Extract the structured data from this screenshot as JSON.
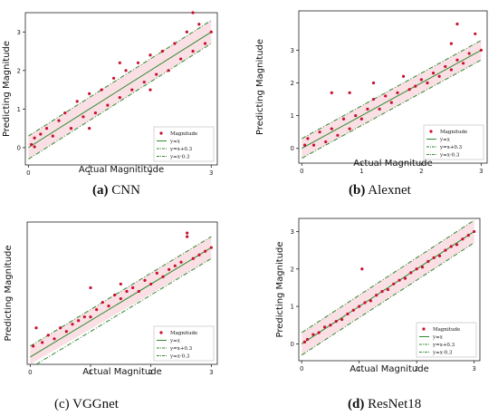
{
  "captions": [
    {
      "label": "(a)",
      "name": "CNN"
    },
    {
      "label": "(b)",
      "name": "Alexnet"
    },
    {
      "label": "(c)",
      "name": "VGGnet"
    },
    {
      "label": "(d)",
      "name": "ResNet18"
    }
  ],
  "colors": {
    "point": "#c8102e",
    "line": "#2f8a2f",
    "band": "#f6c7cf"
  },
  "chart_data": [
    {
      "type": "scatter",
      "title": "",
      "xlabel": "Actual Magnititude",
      "ylabel": "Predicting Magnitude",
      "xlim": [
        -0.05,
        3.1
      ],
      "ylim": [
        -0.45,
        3.5
      ],
      "xticks": [
        "0",
        "1",
        "2",
        "3"
      ],
      "yticks": [
        "0",
        "1",
        "2",
        "3"
      ],
      "grid": false,
      "legend_position": "bottom-right",
      "legend": [
        "Magnitude",
        "y=x",
        "y=x+0.3",
        "y=x-0.3"
      ],
      "series": [
        {
          "name": "Magnitude",
          "kind": "points",
          "points": [
            [
              0.05,
              0.08
            ],
            [
              0.1,
              0.02
            ],
            [
              0.1,
              0.25
            ],
            [
              0.2,
              0.35
            ],
            [
              0.3,
              0.5
            ],
            [
              0.4,
              0.3
            ],
            [
              0.5,
              0.7
            ],
            [
              0.6,
              0.9
            ],
            [
              0.7,
              0.5
            ],
            [
              0.8,
              1.2
            ],
            [
              0.9,
              0.8
            ],
            [
              1.0,
              1.4
            ],
            [
              1.1,
              0.9
            ],
            [
              1.2,
              1.5
            ],
            [
              1.3,
              1.1
            ],
            [
              1.4,
              1.8
            ],
            [
              1.5,
              1.3
            ],
            [
              1.6,
              2.0
            ],
            [
              1.7,
              1.5
            ],
            [
              1.8,
              2.2
            ],
            [
              1.9,
              1.7
            ],
            [
              2.0,
              2.4
            ],
            [
              2.1,
              1.9
            ],
            [
              2.2,
              2.5
            ],
            [
              2.3,
              2.0
            ],
            [
              2.4,
              2.7
            ],
            [
              2.5,
              2.3
            ],
            [
              2.6,
              3.0
            ],
            [
              2.7,
              2.5
            ],
            [
              2.8,
              3.2
            ],
            [
              2.9,
              2.7
            ],
            [
              3.0,
              3.0
            ],
            [
              2.7,
              3.5
            ],
            [
              1.0,
              0.5
            ],
            [
              1.5,
              2.2
            ],
            [
              2.0,
              1.5
            ]
          ]
        },
        {
          "name": "y=x",
          "kind": "line",
          "offset": 0
        },
        {
          "name": "y=x+0.3",
          "kind": "line",
          "offset": 0.3
        },
        {
          "name": "y=x-0.3",
          "kind": "line",
          "offset": -0.3
        }
      ]
    },
    {
      "type": "scatter",
      "title": "",
      "xlabel": "Actual Magnitude",
      "ylabel": "Predicting Magnitude",
      "xlim": [
        -0.05,
        3.1
      ],
      "ylim": [
        -0.45,
        4.2
      ],
      "xticks": [
        "0",
        "1",
        "2",
        "3"
      ],
      "yticks": [
        "0",
        "1",
        "2",
        "3"
      ],
      "grid": false,
      "legend_position": "bottom-right",
      "legend": [
        "Magnitude",
        "y=x",
        "y=x+0.3",
        "y=x-0.3"
      ],
      "series": [
        {
          "name": "Magnitude",
          "kind": "points",
          "points": [
            [
              0.05,
              0.1
            ],
            [
              0.1,
              0.3
            ],
            [
              0.2,
              0.1
            ],
            [
              0.3,
              0.5
            ],
            [
              0.4,
              0.2
            ],
            [
              0.5,
              0.6
            ],
            [
              0.6,
              0.4
            ],
            [
              0.7,
              0.9
            ],
            [
              0.8,
              1.7
            ],
            [
              0.8,
              0.6
            ],
            [
              0.9,
              1.0
            ],
            [
              1.0,
              0.9
            ],
            [
              1.1,
              1.2
            ],
            [
              1.2,
              1.5
            ],
            [
              1.3,
              1.2
            ],
            [
              1.4,
              1.6
            ],
            [
              1.5,
              1.4
            ],
            [
              1.6,
              1.7
            ],
            [
              1.7,
              2.2
            ],
            [
              1.8,
              1.8
            ],
            [
              1.9,
              1.9
            ],
            [
              2.0,
              2.1
            ],
            [
              2.1,
              2.0
            ],
            [
              2.2,
              2.3
            ],
            [
              2.3,
              2.2
            ],
            [
              2.4,
              2.5
            ],
            [
              2.5,
              2.4
            ],
            [
              2.6,
              2.7
            ],
            [
              2.6,
              3.8
            ],
            [
              2.7,
              2.6
            ],
            [
              2.8,
              2.9
            ],
            [
              2.9,
              3.5
            ],
            [
              3.0,
              3.0
            ],
            [
              0.5,
              1.7
            ],
            [
              1.2,
              2.0
            ],
            [
              2.5,
              3.2
            ]
          ]
        },
        {
          "name": "y=x",
          "kind": "line",
          "offset": 0
        },
        {
          "name": "y=x+0.3",
          "kind": "line",
          "offset": 0.3
        },
        {
          "name": "y=x-0.3",
          "kind": "line",
          "offset": -0.3
        }
      ]
    },
    {
      "type": "scatter",
      "title": "",
      "xlabel": "Actual Magnitude",
      "ylabel": "Predicting Magnitude",
      "xlim": [
        -0.05,
        3.1
      ],
      "ylim": [
        -0.2,
        3.7
      ],
      "xticks": [
        "0",
        "1",
        "2",
        "3"
      ],
      "yticks": [],
      "grid": false,
      "legend_position": "bottom-right",
      "legend": [
        "Magnitude",
        "y=x",
        "y=x+0.3",
        "y=x-0.3"
      ],
      "series": [
        {
          "name": "Magnitude",
          "kind": "points",
          "points": [
            [
              0.05,
              0.3
            ],
            [
              0.1,
              0.8
            ],
            [
              0.2,
              0.4
            ],
            [
              0.3,
              0.6
            ],
            [
              0.4,
              0.5
            ],
            [
              0.5,
              0.8
            ],
            [
              0.6,
              0.7
            ],
            [
              0.7,
              0.9
            ],
            [
              0.8,
              1.0
            ],
            [
              0.9,
              1.1
            ],
            [
              1.0,
              1.1
            ],
            [
              1.1,
              1.3
            ],
            [
              1.2,
              1.5
            ],
            [
              1.3,
              1.4
            ],
            [
              1.4,
              1.7
            ],
            [
              1.5,
              1.6
            ],
            [
              1.6,
              1.8
            ],
            [
              1.7,
              1.9
            ],
            [
              1.8,
              1.8
            ],
            [
              1.9,
              2.1
            ],
            [
              2.0,
              2.0
            ],
            [
              2.1,
              2.3
            ],
            [
              2.2,
              2.2
            ],
            [
              2.3,
              2.4
            ],
            [
              2.4,
              2.5
            ],
            [
              2.5,
              2.6
            ],
            [
              2.6,
              3.3
            ],
            [
              2.7,
              2.7
            ],
            [
              2.8,
              2.8
            ],
            [
              2.9,
              2.9
            ],
            [
              3.0,
              3.0
            ],
            [
              1.0,
              1.9
            ],
            [
              1.5,
              2.0
            ],
            [
              2.6,
              3.4
            ]
          ]
        },
        {
          "name": "y=x",
          "kind": "line",
          "offset": 0
        },
        {
          "name": "y=x+0.3",
          "kind": "line",
          "offset": 0.3
        },
        {
          "name": "y=x-0.3",
          "kind": "line",
          "offset": -0.3
        }
      ]
    },
    {
      "type": "scatter",
      "title": "",
      "xlabel": "Actual Magnitude",
      "ylabel": "Predicting Magnitude",
      "xlim": [
        -0.05,
        3.1
      ],
      "ylim": [
        -0.45,
        3.35
      ],
      "xticks": [
        "0",
        "1",
        "2",
        "3"
      ],
      "yticks": [
        "0",
        "1",
        "2",
        "3"
      ],
      "grid": false,
      "legend_position": "bottom-right",
      "legend": [
        "Magnitude",
        "y=x",
        "y=x+0.3",
        "y=x-0.3"
      ],
      "series": [
        {
          "name": "Magnitude",
          "kind": "points",
          "points": [
            [
              0.05,
              0.05
            ],
            [
              0.1,
              0.12
            ],
            [
              0.2,
              0.25
            ],
            [
              0.3,
              0.3
            ],
            [
              0.4,
              0.45
            ],
            [
              0.5,
              0.5
            ],
            [
              0.6,
              0.6
            ],
            [
              0.7,
              0.65
            ],
            [
              0.8,
              0.8
            ],
            [
              0.9,
              0.9
            ],
            [
              1.0,
              1.0
            ],
            [
              1.05,
              2.0
            ],
            [
              1.1,
              1.1
            ],
            [
              1.2,
              1.15
            ],
            [
              1.3,
              1.3
            ],
            [
              1.4,
              1.4
            ],
            [
              1.5,
              1.45
            ],
            [
              1.6,
              1.6
            ],
            [
              1.7,
              1.7
            ],
            [
              1.8,
              1.75
            ],
            [
              1.9,
              1.9
            ],
            [
              2.0,
              2.0
            ],
            [
              2.1,
              2.05
            ],
            [
              2.2,
              2.2
            ],
            [
              2.3,
              2.3
            ],
            [
              2.4,
              2.35
            ],
            [
              2.5,
              2.5
            ],
            [
              2.6,
              2.6
            ],
            [
              2.7,
              2.65
            ],
            [
              2.8,
              2.8
            ],
            [
              2.9,
              2.9
            ],
            [
              3.0,
              3.0
            ]
          ]
        },
        {
          "name": "y=x",
          "kind": "line",
          "offset": 0
        },
        {
          "name": "y=x+0.3",
          "kind": "line",
          "offset": 0.3
        },
        {
          "name": "y=x-0.3",
          "kind": "line",
          "offset": -0.3
        }
      ]
    }
  ]
}
